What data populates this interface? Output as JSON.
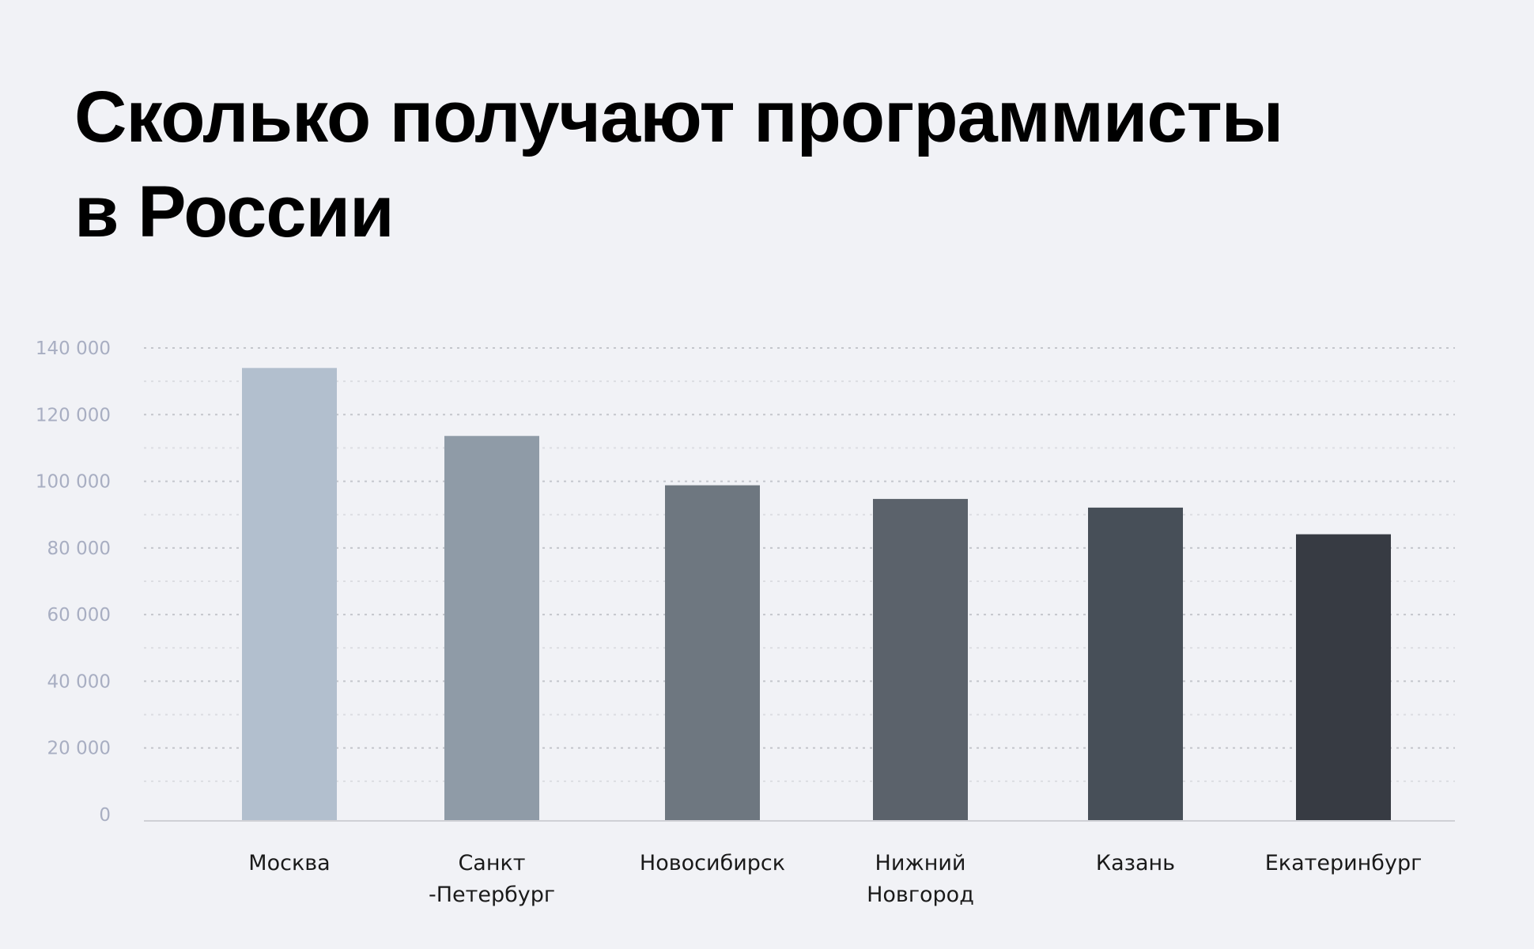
{
  "chart_data": {
    "type": "bar",
    "title_lines": [
      "Сколько получают программисты",
      "в России"
    ],
    "categories": [
      [
        "Москва"
      ],
      [
        "Санкт",
        "-Петербург"
      ],
      [
        "Новосибирск"
      ],
      [
        "Нижний",
        "Новгород"
      ],
      [
        "Казань"
      ],
      [
        "Екатеринбург"
      ]
    ],
    "values": [
      134000,
      113600,
      98800,
      94700,
      92100,
      84100
    ],
    "colors": [
      "#b2bfce",
      "#8f9ba7",
      "#6e7780",
      "#5b626b",
      "#474f58",
      "#373b43"
    ],
    "ylim": [
      0,
      140000
    ],
    "yticks": [
      0,
      20000,
      40000,
      60000,
      80000,
      100000,
      120000,
      140000
    ],
    "ytick_labels": [
      "0",
      "20 000",
      "40 000",
      "60 000",
      "80 000",
      "100 000",
      "120 000",
      "140 000"
    ],
    "xlabel": "",
    "ylabel": "",
    "grid": true,
    "legend": "none"
  }
}
